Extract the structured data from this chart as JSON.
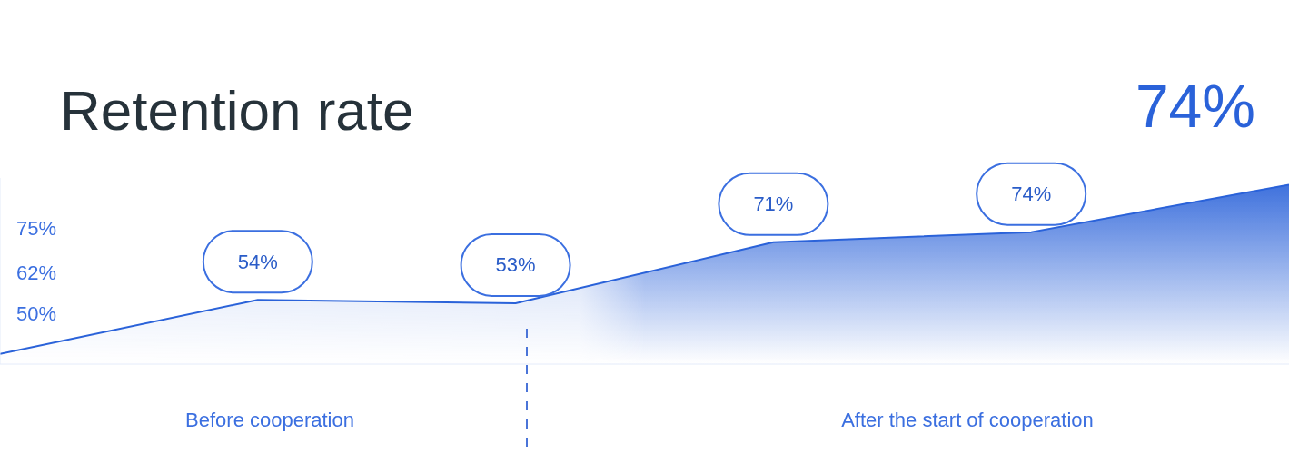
{
  "chart_data": {
    "type": "area",
    "title": "Retention rate",
    "categories": [
      null,
      null,
      null,
      null,
      null,
      null
    ],
    "ylim": [
      35,
      90
    ],
    "yticks": [
      {
        "value": 50,
        "label": "50%"
      },
      {
        "value": 62,
        "label": "62%"
      },
      {
        "value": 75,
        "label": "75%"
      }
    ],
    "series": [
      {
        "color": "#2a62d9",
        "values": [
          38,
          54,
          53,
          71,
          74,
          88
        ],
        "value_labels": [
          null,
          "54%",
          "53%",
          "71%",
          "74%",
          null
        ]
      }
    ],
    "annotations": [
      "74%",
      "Before cooperation",
      "After the start of cooperation"
    ],
    "grid": false
  }
}
